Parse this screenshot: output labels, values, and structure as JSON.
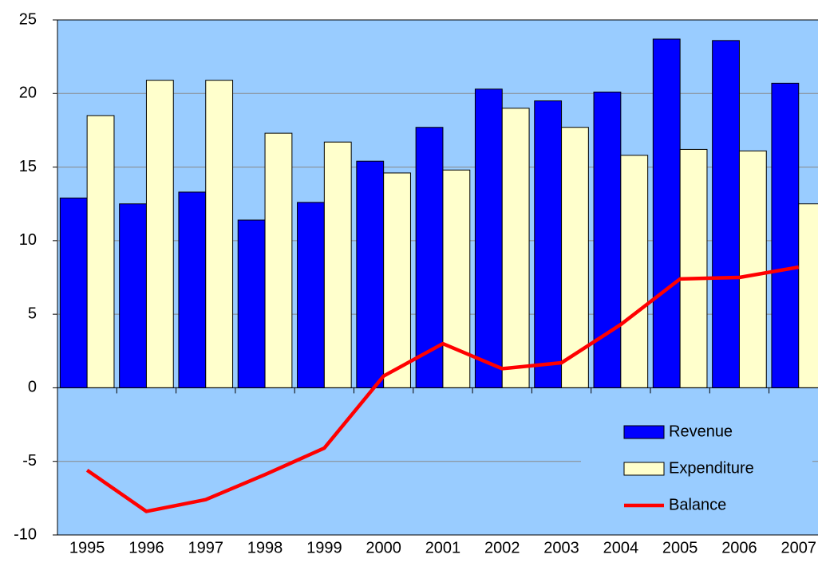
{
  "chart_data": {
    "type": "bar",
    "categories": [
      "1995",
      "1996",
      "1997",
      "1998",
      "1999",
      "2000",
      "2001",
      "2002",
      "2003",
      "2004",
      "2005",
      "2006",
      "2007"
    ],
    "series": [
      {
        "name": "Revenue",
        "color": "#0000ff",
        "values": [
          12.9,
          12.5,
          13.3,
          11.4,
          12.6,
          15.4,
          17.7,
          20.3,
          19.5,
          20.1,
          23.7,
          23.6,
          20.7
        ]
      },
      {
        "name": "Expenditure",
        "color": "#ffffcc",
        "values": [
          18.5,
          20.9,
          20.9,
          17.3,
          16.7,
          14.6,
          14.8,
          19.0,
          17.7,
          15.8,
          16.2,
          16.1,
          12.5
        ]
      },
      {
        "name": "Balance",
        "type": "line",
        "color": "#ff0000",
        "values": [
          -5.6,
          -8.4,
          -7.6,
          -5.9,
          -4.1,
          0.8,
          3.0,
          1.3,
          1.7,
          4.3,
          7.4,
          7.5,
          8.2
        ]
      }
    ],
    "ylim": [
      -10,
      25
    ],
    "yticks": [
      -10,
      -5,
      0,
      5,
      10,
      15,
      20,
      25
    ],
    "grid": true,
    "legend": "lower right"
  }
}
